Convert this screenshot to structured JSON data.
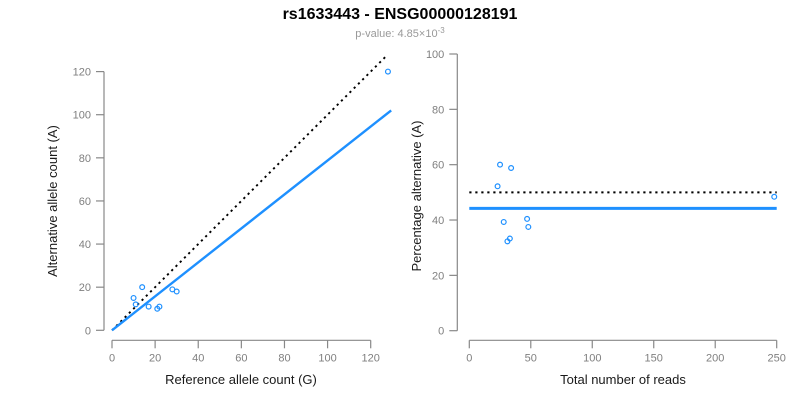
{
  "header": {
    "title": "rs1633443 - ENSG00000128191",
    "subtitle_prefix": "p-value: 4.85×10",
    "subtitle_exponent": "-3"
  },
  "colors": {
    "accent_blue": "#1E90FF",
    "line_black": "#000000",
    "axis_gray": "#888888",
    "tick_label_gray": "#7F7F7F",
    "axis_title_black": "#1A1A1A",
    "subtitle_gray": "#999999"
  },
  "chart_data": [
    {
      "type": "scatter",
      "panel": "left",
      "xlabel": "Reference allele count (G)",
      "ylabel": "Alternative allele count (A)",
      "xlim": [
        0,
        128
      ],
      "ylim": [
        0,
        128
      ],
      "xticks": [
        0,
        20,
        40,
        60,
        80,
        100,
        120
      ],
      "yticks": [
        0,
        20,
        40,
        60,
        80,
        100,
        120
      ],
      "grid": false,
      "legend": "none",
      "marker": "open-circle",
      "marker_color": "#1E90FF",
      "points": [
        [
          10,
          15
        ],
        [
          11,
          12
        ],
        [
          14,
          20
        ],
        [
          17,
          11
        ],
        [
          21,
          10
        ],
        [
          22,
          11
        ],
        [
          28,
          19
        ],
        [
          30,
          18
        ],
        [
          128,
          120
        ]
      ],
      "lines": [
        {
          "name": "identity-line",
          "style": "dotted",
          "color": "#000000",
          "width": 1.9,
          "x": [
            0,
            127.5
          ],
          "y": [
            0,
            127.5
          ]
        },
        {
          "name": "fit-line",
          "style": "solid",
          "color": "#1E90FF",
          "width": 2.4,
          "x": [
            0,
            129.5
          ],
          "y": [
            0,
            102
          ]
        }
      ]
    },
    {
      "type": "scatter",
      "panel": "right",
      "xlabel": "Total number of reads",
      "ylabel": "Percentage alternative (A)",
      "xlim": [
        0,
        250
      ],
      "ylim": [
        0,
        100
      ],
      "xticks": [
        0,
        50,
        100,
        150,
        200,
        250
      ],
      "yticks": [
        0,
        20,
        40,
        60,
        80,
        100
      ],
      "grid": false,
      "legend": "none",
      "marker": "open-circle",
      "marker_color": "#1E90FF",
      "points": [
        [
          25,
          60.0
        ],
        [
          23,
          52.2
        ],
        [
          34,
          58.8
        ],
        [
          28,
          39.3
        ],
        [
          31,
          32.3
        ],
        [
          33,
          33.3
        ],
        [
          47,
          40.4
        ],
        [
          48,
          37.5
        ],
        [
          248,
          48.4
        ]
      ],
      "lines": [
        {
          "name": "null-50pct-line",
          "style": "dotted",
          "color": "#000000",
          "width": 2.0,
          "x": [
            0,
            250
          ],
          "y": [
            50,
            50
          ]
        },
        {
          "name": "fit-line",
          "style": "solid",
          "color": "#1E90FF",
          "width": 3.0,
          "x": [
            0,
            250
          ],
          "y": [
            44.2,
            44.2
          ]
        }
      ]
    }
  ]
}
